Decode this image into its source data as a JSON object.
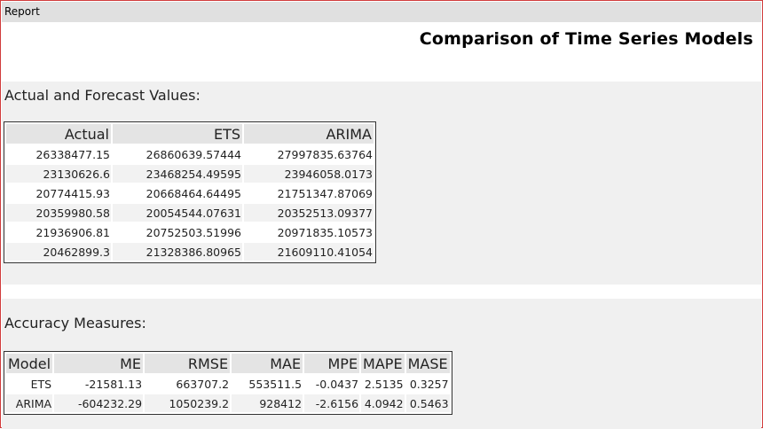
{
  "window": {
    "title": "Report"
  },
  "report": {
    "title": "Comparison of Time Series Models"
  },
  "forecast": {
    "heading": "Actual and Forecast Values:",
    "columns": [
      "Actual",
      "ETS",
      "ARIMA"
    ],
    "rows": [
      [
        "26338477.15",
        "26860639.57444",
        "27997835.63764"
      ],
      [
        "23130626.6",
        "23468254.49595",
        "23946058.0173"
      ],
      [
        "20774415.93",
        "20668464.64495",
        "21751347.87069"
      ],
      [
        "20359980.58",
        "20054544.07631",
        "20352513.09377"
      ],
      [
        "21936906.81",
        "20752503.51996",
        "20971835.10573"
      ],
      [
        "20462899.3",
        "21328386.80965",
        "21609110.41054"
      ]
    ]
  },
  "accuracy": {
    "heading": "Accuracy Measures:",
    "columns": [
      "Model",
      "ME",
      "RMSE",
      "MAE",
      "MPE",
      "MAPE",
      "MASE"
    ],
    "rows": [
      [
        "ETS",
        "-21581.13",
        "663707.2",
        "553511.5",
        "-0.0437",
        "2.5135",
        "0.3257"
      ],
      [
        "ARIMA",
        "-604232.29",
        "1050239.2",
        "928412",
        "-2.6156",
        "4.0942",
        "0.5463"
      ]
    ]
  }
}
